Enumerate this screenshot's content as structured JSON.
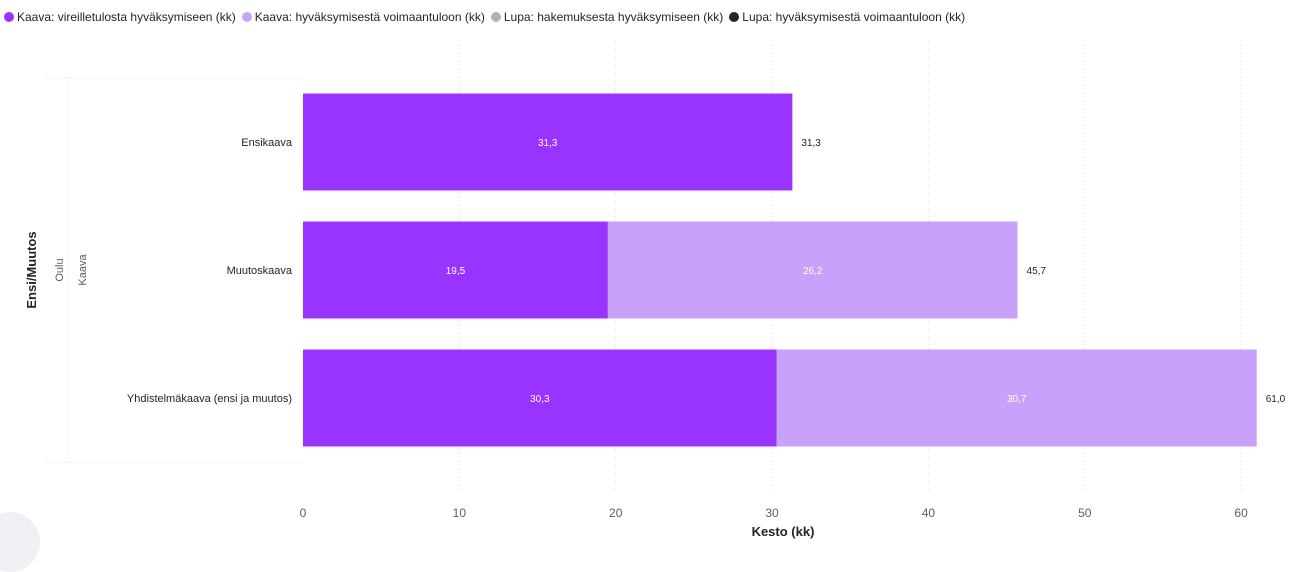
{
  "chart_data": {
    "type": "bar",
    "orientation": "horizontal",
    "stacked": true,
    "categories": [
      "Ensikaava",
      "Muutoskaava",
      "Yhdistelmäkaava (ensi ja muutos)"
    ],
    "hierarchy_labels": [
      "Oulu",
      "Kaava"
    ],
    "series": [
      {
        "name": "Kaava: vireilletulosta hyväksymiseen (kk)",
        "color": "#9933ff",
        "values": [
          31.3,
          19.5,
          30.3
        ],
        "labels": [
          "31,3",
          "19,5",
          "30,3"
        ]
      },
      {
        "name": "Kaava: hyväksymisestä voimaantuloon (kk)",
        "color": "#c8a2fa",
        "values": [
          null,
          26.2,
          30.7
        ],
        "labels": [
          "",
          "26,2",
          "30,7"
        ]
      },
      {
        "name": "Lupa: hakemuksesta hyväksymiseen (kk)",
        "color": "#b3b3b3",
        "values": [
          null,
          null,
          null
        ],
        "labels": [
          "",
          "",
          ""
        ]
      },
      {
        "name": "Lupa: hyväksymisestä voimaantuloon (kk)",
        "color": "#252423",
        "values": [
          null,
          null,
          null
        ],
        "labels": [
          "",
          "",
          ""
        ]
      }
    ],
    "totals": [
      "31,3",
      "45,7",
      "61,0"
    ],
    "xlabel": "Kesto (kk)",
    "ylabel": "Ensi/Muutos",
    "xlim": [
      0,
      61
    ],
    "xticks": [
      0,
      10,
      20,
      30,
      40,
      50,
      60
    ],
    "grid": true,
    "legend_position": "top-left"
  }
}
